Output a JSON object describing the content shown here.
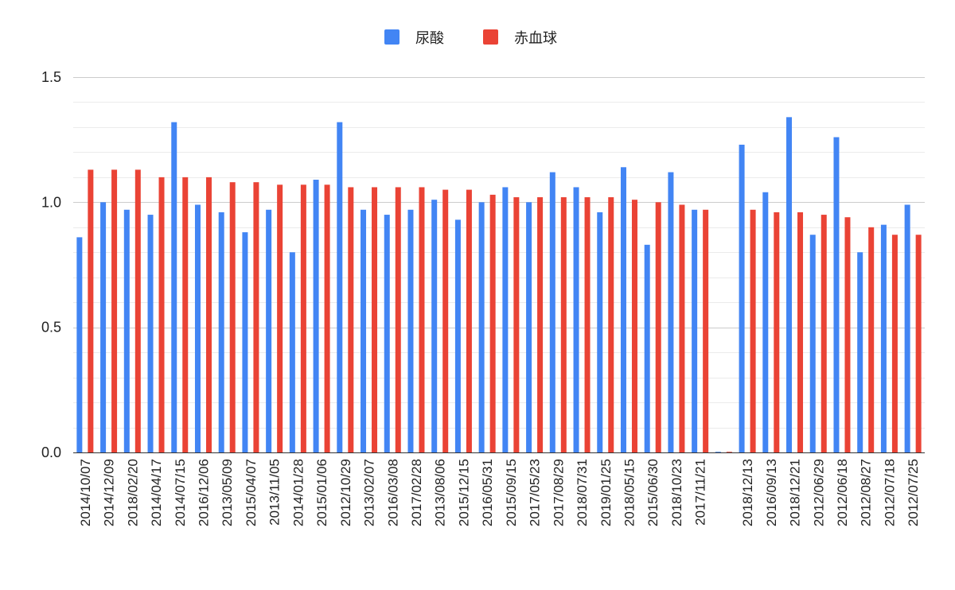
{
  "chart_data": {
    "type": "bar",
    "title": "",
    "xlabel": "",
    "ylabel": "",
    "ylim": [
      0,
      1.5
    ],
    "yticks": [
      "0.0",
      "0.5",
      "1.0",
      "1.5"
    ],
    "grid": true,
    "legend_position": "top-center",
    "categories": [
      "2014/10/07",
      "2014/12/09",
      "2018/02/20",
      "2014/04/17",
      "2014/07/15",
      "2016/12/06",
      "2013/05/09",
      "2015/04/07",
      "2013/11/05",
      "2014/01/28",
      "2015/01/06",
      "2012/10/29",
      "2013/02/07",
      "2016/03/08",
      "2017/02/28",
      "2013/08/06",
      "2015/12/15",
      "2016/05/31",
      "2015/09/15",
      "2017/05/23",
      "2017/08/29",
      "2018/07/31",
      "2019/01/25",
      "2018/05/15",
      "2015/06/30",
      "2018/10/23",
      "2017/11/21",
      "",
      "2018/12/13",
      "2016/09/13",
      "2018/12/21",
      "2012/06/29",
      "2012/06/18",
      "2012/08/27",
      "2012/07/18",
      "2012/07/25"
    ],
    "series": [
      {
        "name": "尿酸",
        "color": "#4285f4",
        "values": [
          0.86,
          1.0,
          0.97,
          0.95,
          1.32,
          0.99,
          0.96,
          0.88,
          0.97,
          0.8,
          1.09,
          1.32,
          0.97,
          0.95,
          0.97,
          1.01,
          0.93,
          1.0,
          1.06,
          1.0,
          1.12,
          1.06,
          0.96,
          1.14,
          0.83,
          1.12,
          0.97,
          0.0,
          1.23,
          1.04,
          1.34,
          0.87,
          1.26,
          0.8,
          0.91,
          0.99
        ]
      },
      {
        "name": "赤血球",
        "color": "#ea4335",
        "values": [
          1.13,
          1.13,
          1.13,
          1.1,
          1.1,
          1.1,
          1.08,
          1.08,
          1.07,
          1.07,
          1.07,
          1.06,
          1.06,
          1.06,
          1.06,
          1.05,
          1.05,
          1.03,
          1.02,
          1.02,
          1.02,
          1.02,
          1.02,
          1.01,
          1.0,
          0.99,
          0.97,
          0.0,
          0.97,
          0.96,
          0.96,
          0.95,
          0.94,
          0.9,
          0.87,
          0.87
        ]
      }
    ]
  },
  "legend": {
    "items": [
      {
        "label": "尿酸",
        "color": "#4285f4"
      },
      {
        "label": "赤血球",
        "color": "#ea4335"
      }
    ]
  }
}
